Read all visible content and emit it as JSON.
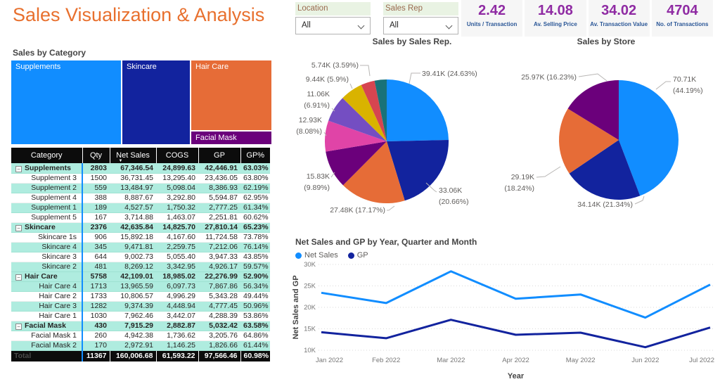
{
  "title": "Sales Visualization & Analysis",
  "slicers": [
    {
      "label": "Location",
      "value": "All"
    },
    {
      "label": "Sales Rep",
      "value": "All"
    }
  ],
  "kpis": [
    {
      "value": "2.42",
      "label": "Units / Transaction"
    },
    {
      "value": "14.08",
      "label": "Av. Selling Price"
    },
    {
      "value": "34.02",
      "label": "Av. Transaction Value"
    },
    {
      "value": "4704",
      "label": "No. of Transactions"
    }
  ],
  "table": {
    "columns": [
      "Category",
      "Qty",
      "Net Sales",
      "COGS",
      "GP",
      "GP%"
    ],
    "sorted_column": "Net Sales",
    "rows": [
      {
        "name": "Supplements",
        "level": "group",
        "shaded": true,
        "qty": "2803",
        "net_sales": "67,346.54",
        "cogs": "24,899.63",
        "gp": "42,446.91",
        "gp_pct": "63.03%"
      },
      {
        "name": "Supplement 3",
        "level": "child",
        "shaded": false,
        "qty": "1500",
        "net_sales": "36,731.45",
        "cogs": "13,295.40",
        "gp": "23,436.05",
        "gp_pct": "63.80%"
      },
      {
        "name": "Supplement 2",
        "level": "child",
        "shaded": true,
        "qty": "559",
        "net_sales": "13,484.97",
        "cogs": "5,098.04",
        "gp": "8,386.93",
        "gp_pct": "62.19%"
      },
      {
        "name": "Supplement 4",
        "level": "child",
        "shaded": false,
        "qty": "388",
        "net_sales": "8,887.67",
        "cogs": "3,292.80",
        "gp": "5,594.87",
        "gp_pct": "62.95%"
      },
      {
        "name": "Supplement 1",
        "level": "child",
        "shaded": true,
        "qty": "189",
        "net_sales": "4,527.57",
        "cogs": "1,750.32",
        "gp": "2,777.25",
        "gp_pct": "61.34%"
      },
      {
        "name": "Supplement 5",
        "level": "child",
        "shaded": false,
        "qty": "167",
        "net_sales": "3,714.88",
        "cogs": "1,463.07",
        "gp": "2,251.81",
        "gp_pct": "60.62%"
      },
      {
        "name": "Skincare",
        "level": "group",
        "shaded": true,
        "qty": "2376",
        "net_sales": "42,635.84",
        "cogs": "14,825.70",
        "gp": "27,810.14",
        "gp_pct": "65.23%"
      },
      {
        "name": "Skincare 1s",
        "level": "child",
        "shaded": false,
        "qty": "906",
        "net_sales": "15,892.18",
        "cogs": "4,167.60",
        "gp": "11,724.58",
        "gp_pct": "73.78%"
      },
      {
        "name": "Skincare 4",
        "level": "child",
        "shaded": true,
        "qty": "345",
        "net_sales": "9,471.81",
        "cogs": "2,259.75",
        "gp": "7,212.06",
        "gp_pct": "76.14%"
      },
      {
        "name": "Skincare 3",
        "level": "child",
        "shaded": false,
        "qty": "644",
        "net_sales": "9,002.73",
        "cogs": "5,055.40",
        "gp": "3,947.33",
        "gp_pct": "43.85%"
      },
      {
        "name": "Skincare 2",
        "level": "child",
        "shaded": true,
        "qty": "481",
        "net_sales": "8,269.12",
        "cogs": "3,342.95",
        "gp": "4,926.17",
        "gp_pct": "59.57%"
      },
      {
        "name": "Hair Care",
        "level": "group",
        "shaded": true,
        "qty": "5758",
        "net_sales": "42,109.01",
        "cogs": "18,985.02",
        "gp": "22,276.99",
        "gp_pct": "52.90%"
      },
      {
        "name": "Hair Care 4",
        "level": "child",
        "shaded": true,
        "qty": "1713",
        "net_sales": "13,965.59",
        "cogs": "6,097.73",
        "gp": "7,867.86",
        "gp_pct": "56.34%"
      },
      {
        "name": "Hair Care 2",
        "level": "child",
        "shaded": false,
        "qty": "1733",
        "net_sales": "10,806.57",
        "cogs": "4,996.29",
        "gp": "5,343.28",
        "gp_pct": "49.44%"
      },
      {
        "name": "Hair Care 3",
        "level": "child",
        "shaded": true,
        "qty": "1282",
        "net_sales": "9,374.39",
        "cogs": "4,448.94",
        "gp": "4,777.45",
        "gp_pct": "50.96%"
      },
      {
        "name": "Hair Care 1",
        "level": "child",
        "shaded": false,
        "qty": "1030",
        "net_sales": "7,962.46",
        "cogs": "3,442.07",
        "gp": "4,288.39",
        "gp_pct": "53.86%"
      },
      {
        "name": "Facial Mask",
        "level": "group",
        "shaded": true,
        "qty": "430",
        "net_sales": "7,915.29",
        "cogs": "2,882.87",
        "gp": "5,032.42",
        "gp_pct": "63.58%"
      },
      {
        "name": "Facial Mask 1",
        "level": "child",
        "shaded": false,
        "qty": "260",
        "net_sales": "4,942.38",
        "cogs": "1,736.62",
        "gp": "3,205.76",
        "gp_pct": "64.86%"
      },
      {
        "name": "Facial Mask 2",
        "level": "child",
        "shaded": true,
        "qty": "170",
        "net_sales": "2,972.91",
        "cogs": "1,146.25",
        "gp": "1,826.66",
        "gp_pct": "61.44%"
      }
    ],
    "total": {
      "name": "Total",
      "qty": "11367",
      "net_sales": "160,006.68",
      "cogs": "61,593.22",
      "gp": "97,566.46",
      "gp_pct": "60.98%"
    }
  },
  "chart_data": [
    {
      "type": "treemap",
      "title": "Sales by Category",
      "blocks": [
        {
          "label": "Supplements",
          "value": 67346.54,
          "color": "#118DFF"
        },
        {
          "label": "Skincare",
          "value": 42635.84,
          "color": "#12239E"
        },
        {
          "label": "Hair Care",
          "value": 42109.01,
          "color": "#E66C37"
        },
        {
          "label": "Facial Mask",
          "value": 7915.29,
          "color": "#6B007B"
        }
      ]
    },
    {
      "type": "pie",
      "title": "Sales by Sales Rep.",
      "slices": [
        {
          "value_label": "39.41K",
          "pct": 24.63,
          "color": "#118DFF",
          "label_lines": [
            "39.41K (24.63%)"
          ]
        },
        {
          "value_label": "33.06K",
          "pct": 20.66,
          "color": "#12239E",
          "label_lines": [
            "33.06K",
            "(20.66%)"
          ]
        },
        {
          "value_label": "27.48K",
          "pct": 17.17,
          "color": "#E66C37",
          "label_lines": [
            "27.48K (17.17%)"
          ]
        },
        {
          "value_label": "15.83K",
          "pct": 9.89,
          "color": "#6B007B",
          "label_lines": [
            "15.83K",
            "(9.89%)"
          ]
        },
        {
          "value_label": "12.93K",
          "pct": 8.08,
          "color": "#E044A7",
          "label_lines": [
            "12.93K",
            "(8.08%)"
          ]
        },
        {
          "value_label": "11.06K",
          "pct": 6.91,
          "color": "#744EC2",
          "label_lines": [
            "11.06K",
            "(6.91%)"
          ]
        },
        {
          "value_label": "9.44K",
          "pct": 5.9,
          "color": "#D9B300",
          "label_lines": [
            "9.44K (5.9%)"
          ]
        },
        {
          "value_label": "5.74K",
          "pct": 3.59,
          "color": "#D64550",
          "label_lines": [
            "5.74K (3.59%)"
          ]
        },
        {
          "value_label": "",
          "pct": 3.17,
          "color": "#197278",
          "label_lines": []
        }
      ]
    },
    {
      "type": "pie",
      "title": "Sales by Store",
      "slices": [
        {
          "value_label": "70.71K",
          "pct": 44.19,
          "color": "#118DFF",
          "label_lines": [
            "70.71K",
            "(44.19%)"
          ]
        },
        {
          "value_label": "34.14K",
          "pct": 21.34,
          "color": "#12239E",
          "label_lines": [
            "34.14K (21.34%)"
          ]
        },
        {
          "value_label": "29.19K",
          "pct": 18.24,
          "color": "#E66C37",
          "label_lines": [
            "29.19K",
            "(18.24%)"
          ]
        },
        {
          "value_label": "25.97K",
          "pct": 16.23,
          "color": "#6B007B",
          "label_lines": [
            "25.97K (16.23%)"
          ]
        }
      ]
    },
    {
      "type": "line",
      "title": "Net Sales and GP by Year, Quarter and Month",
      "categories": [
        "Jan 2022",
        "Feb 2022",
        "Mar 2022",
        "Apr 2022",
        "May 2022",
        "Jun 2022",
        "Jul 2022"
      ],
      "series": [
        {
          "name": "Net Sales",
          "color": "#118DFF",
          "values": [
            23400,
            21000,
            28400,
            22000,
            23000,
            17600,
            25300
          ]
        },
        {
          "name": "GP",
          "color": "#12239E",
          "values": [
            14200,
            12800,
            17100,
            13600,
            14100,
            10700,
            15300
          ]
        }
      ],
      "xlabel": "Year",
      "ylabel": "Net Sales and GP",
      "yticks": [
        "10K",
        "15K",
        "20K",
        "25K",
        "30K"
      ],
      "ylim": [
        10000,
        30000
      ],
      "grid": "horizontal-dotted",
      "legend_position": "top-left"
    }
  ]
}
